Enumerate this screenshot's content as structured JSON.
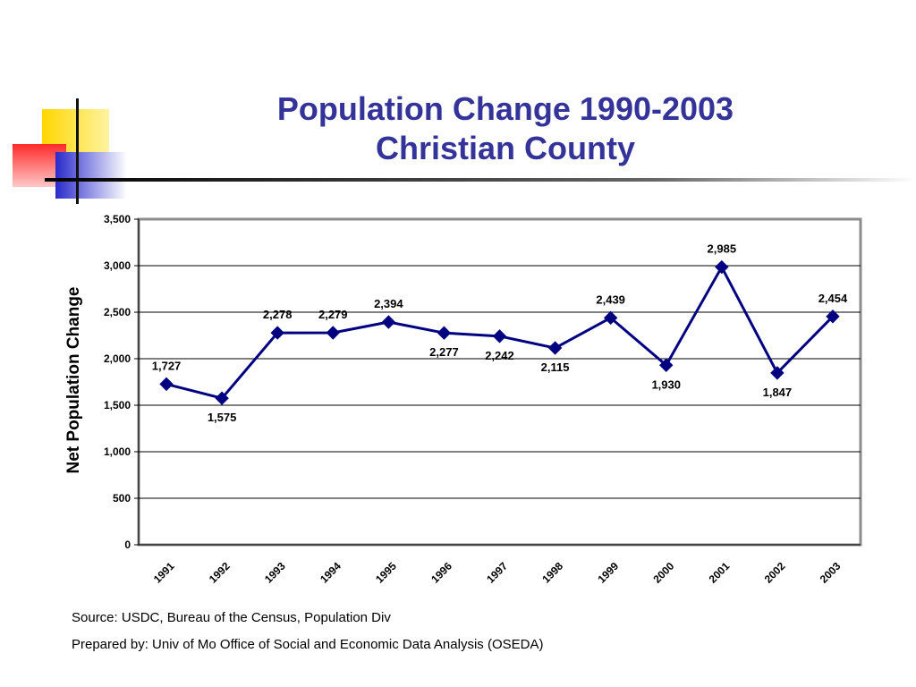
{
  "slide": {
    "title_line1": "Population Change 1990-2003",
    "title_line2": "Christian County",
    "source": "Source: USDC, Bureau of the Census, Population Div",
    "prepared_by": "Prepared by: Univ of Mo Office of Social and Economic Data Analysis (OSEDA)"
  },
  "colors": {
    "title": "#333399",
    "series": "#000080",
    "deco_yellow": "#ffd700",
    "deco_red": "#ff3333",
    "deco_blue": "#3333cc"
  },
  "chart_data": {
    "type": "line",
    "title": "",
    "xlabel": "",
    "ylabel": "Net Population Change",
    "ylim": [
      0,
      3500
    ],
    "yticks": [
      0,
      500,
      1000,
      1500,
      2000,
      2500,
      3000,
      3500
    ],
    "ytick_labels": [
      "0",
      "500",
      "1,000",
      "1,500",
      "2,000",
      "2,500",
      "3,000",
      "3,500"
    ],
    "grid": true,
    "legend": "none",
    "categories": [
      "1991",
      "1992",
      "1993",
      "1994",
      "1995",
      "1996",
      "1997",
      "1998",
      "1999",
      "2000",
      "2001",
      "2002",
      "2003"
    ],
    "series": [
      {
        "values": [
          1727,
          1575,
          2278,
          2279,
          2394,
          2277,
          2242,
          2115,
          2439,
          1930,
          2985,
          1847,
          2454
        ],
        "labels": [
          "1,727",
          "1,575",
          "2,278",
          "2,279",
          "2,394",
          "2,277",
          "2,242",
          "2,115",
          "2,439",
          "1,930",
          "2,985",
          "1,847",
          "2,454"
        ],
        "marker": "diamond"
      }
    ]
  }
}
